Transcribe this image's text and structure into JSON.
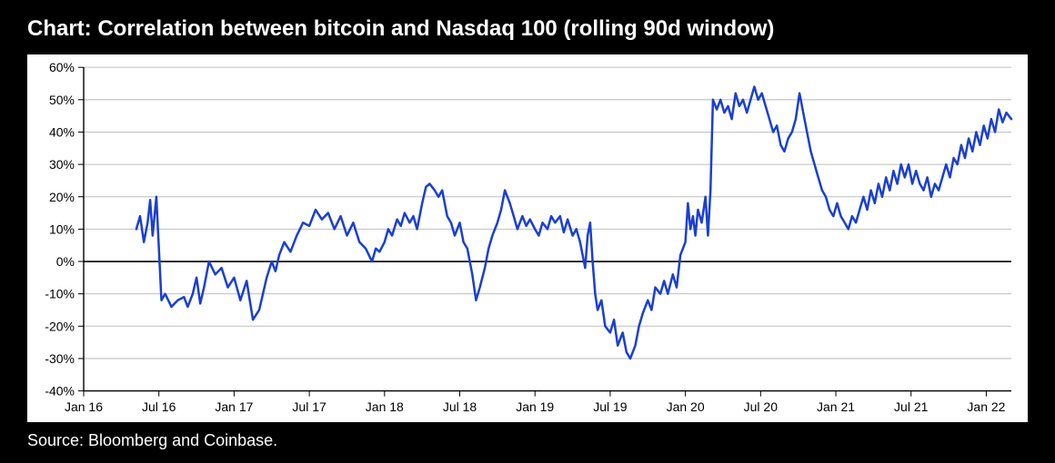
{
  "title": "Chart: Correlation between bitcoin and Nasdaq 100 (rolling 90d window)",
  "source": "Source: Bloomberg and Coinbase.",
  "chart": {
    "type": "line",
    "background_color": "#ffffff",
    "outer_background": "#000000",
    "line_color": "#1b3fd1",
    "line_width": 2.5,
    "axis_color": "#000000",
    "grid_color": "#bfbfbf",
    "zero_line_color": "#000000",
    "tick_color": "#000000",
    "tick_font_size": 14,
    "tick_font_weight": 400,
    "title_font_size": 24,
    "title_font_weight": 700,
    "source_font_size": 18,
    "y_axis": {
      "min": -40,
      "max": 60,
      "tick_step": 10,
      "ticks": [
        -40,
        -30,
        -20,
        -10,
        0,
        10,
        20,
        30,
        40,
        50,
        60
      ],
      "format": "percent"
    },
    "x_axis": {
      "ticks": [
        {
          "t": 0.0,
          "label": "Jan 16"
        },
        {
          "t": 6.0,
          "label": "Jul 16"
        },
        {
          "t": 12.0,
          "label": "Jan 17"
        },
        {
          "t": 18.0,
          "label": "Jul 17"
        },
        {
          "t": 24.0,
          "label": "Jan 18"
        },
        {
          "t": 30.0,
          "label": "Jul 18"
        },
        {
          "t": 36.0,
          "label": "Jan 19"
        },
        {
          "t": 42.0,
          "label": "Jul 19"
        },
        {
          "t": 48.0,
          "label": "Jan 20"
        },
        {
          "t": 54.0,
          "label": "Jul 20"
        },
        {
          "t": 60.0,
          "label": "Jan 21"
        },
        {
          "t": 66.0,
          "label": "Jul 21"
        },
        {
          "t": 72.0,
          "label": "Jan 22"
        }
      ],
      "min": 0,
      "max": 74
    },
    "series": [
      {
        "t": 4.2,
        "v": 10
      },
      {
        "t": 4.5,
        "v": 14
      },
      {
        "t": 4.8,
        "v": 6
      },
      {
        "t": 5.1,
        "v": 12
      },
      {
        "t": 5.3,
        "v": 19
      },
      {
        "t": 5.5,
        "v": 8
      },
      {
        "t": 5.8,
        "v": 20
      },
      {
        "t": 6.0,
        "v": 4
      },
      {
        "t": 6.2,
        "v": -12
      },
      {
        "t": 6.5,
        "v": -10
      },
      {
        "t": 7.0,
        "v": -14
      },
      {
        "t": 7.5,
        "v": -12
      },
      {
        "t": 8.0,
        "v": -11
      },
      {
        "t": 8.3,
        "v": -14
      },
      {
        "t": 8.7,
        "v": -10
      },
      {
        "t": 9.0,
        "v": -5
      },
      {
        "t": 9.3,
        "v": -13
      },
      {
        "t": 9.6,
        "v": -8
      },
      {
        "t": 10.0,
        "v": 0
      },
      {
        "t": 10.5,
        "v": -4
      },
      {
        "t": 11.0,
        "v": -2
      },
      {
        "t": 11.5,
        "v": -8
      },
      {
        "t": 12.0,
        "v": -5
      },
      {
        "t": 12.5,
        "v": -12
      },
      {
        "t": 13.0,
        "v": -6
      },
      {
        "t": 13.5,
        "v": -18
      },
      {
        "t": 14.0,
        "v": -15
      },
      {
        "t": 14.3,
        "v": -10
      },
      {
        "t": 14.6,
        "v": -5
      },
      {
        "t": 15.0,
        "v": 0
      },
      {
        "t": 15.3,
        "v": -3
      },
      {
        "t": 15.6,
        "v": 2
      },
      {
        "t": 16.0,
        "v": 6
      },
      {
        "t": 16.5,
        "v": 3
      },
      {
        "t": 17.0,
        "v": 8
      },
      {
        "t": 17.5,
        "v": 12
      },
      {
        "t": 18.0,
        "v": 11
      },
      {
        "t": 18.5,
        "v": 16
      },
      {
        "t": 19.0,
        "v": 13
      },
      {
        "t": 19.5,
        "v": 15
      },
      {
        "t": 20.0,
        "v": 10
      },
      {
        "t": 20.5,
        "v": 14
      },
      {
        "t": 21.0,
        "v": 8
      },
      {
        "t": 21.5,
        "v": 12
      },
      {
        "t": 22.0,
        "v": 6
      },
      {
        "t": 22.5,
        "v": 4
      },
      {
        "t": 23.0,
        "v": 0
      },
      {
        "t": 23.3,
        "v": 4
      },
      {
        "t": 23.6,
        "v": 3
      },
      {
        "t": 24.0,
        "v": 6
      },
      {
        "t": 24.3,
        "v": 10
      },
      {
        "t": 24.6,
        "v": 8
      },
      {
        "t": 25.0,
        "v": 13
      },
      {
        "t": 25.3,
        "v": 11
      },
      {
        "t": 25.6,
        "v": 15
      },
      {
        "t": 26.0,
        "v": 12
      },
      {
        "t": 26.3,
        "v": 14
      },
      {
        "t": 26.6,
        "v": 10
      },
      {
        "t": 27.0,
        "v": 18
      },
      {
        "t": 27.3,
        "v": 23
      },
      {
        "t": 27.6,
        "v": 24
      },
      {
        "t": 28.0,
        "v": 22
      },
      {
        "t": 28.3,
        "v": 20
      },
      {
        "t": 28.6,
        "v": 22
      },
      {
        "t": 29.0,
        "v": 14
      },
      {
        "t": 29.3,
        "v": 12
      },
      {
        "t": 29.6,
        "v": 8
      },
      {
        "t": 30.0,
        "v": 12
      },
      {
        "t": 30.3,
        "v": 6
      },
      {
        "t": 30.6,
        "v": 4
      },
      {
        "t": 31.0,
        "v": -4
      },
      {
        "t": 31.3,
        "v": -12
      },
      {
        "t": 31.6,
        "v": -8
      },
      {
        "t": 32.0,
        "v": -2
      },
      {
        "t": 32.3,
        "v": 4
      },
      {
        "t": 32.6,
        "v": 8
      },
      {
        "t": 33.0,
        "v": 12
      },
      {
        "t": 33.3,
        "v": 16
      },
      {
        "t": 33.6,
        "v": 22
      },
      {
        "t": 34.0,
        "v": 18
      },
      {
        "t": 34.3,
        "v": 14
      },
      {
        "t": 34.6,
        "v": 10
      },
      {
        "t": 35.0,
        "v": 14
      },
      {
        "t": 35.3,
        "v": 11
      },
      {
        "t": 35.6,
        "v": 13
      },
      {
        "t": 36.0,
        "v": 10
      },
      {
        "t": 36.3,
        "v": 8
      },
      {
        "t": 36.6,
        "v": 12
      },
      {
        "t": 37.0,
        "v": 10
      },
      {
        "t": 37.3,
        "v": 14
      },
      {
        "t": 37.6,
        "v": 12
      },
      {
        "t": 38.0,
        "v": 14
      },
      {
        "t": 38.3,
        "v": 9
      },
      {
        "t": 38.6,
        "v": 13
      },
      {
        "t": 39.0,
        "v": 8
      },
      {
        "t": 39.3,
        "v": 10
      },
      {
        "t": 39.6,
        "v": 6
      },
      {
        "t": 40.0,
        "v": -2
      },
      {
        "t": 40.2,
        "v": 8
      },
      {
        "t": 40.4,
        "v": 12
      },
      {
        "t": 40.6,
        "v": 0
      },
      {
        "t": 40.8,
        "v": -10
      },
      {
        "t": 41.0,
        "v": -15
      },
      {
        "t": 41.3,
        "v": -12
      },
      {
        "t": 41.6,
        "v": -20
      },
      {
        "t": 42.0,
        "v": -22
      },
      {
        "t": 42.3,
        "v": -18
      },
      {
        "t": 42.6,
        "v": -26
      },
      {
        "t": 43.0,
        "v": -22
      },
      {
        "t": 43.3,
        "v": -28
      },
      {
        "t": 43.6,
        "v": -30
      },
      {
        "t": 44.0,
        "v": -26
      },
      {
        "t": 44.3,
        "v": -20
      },
      {
        "t": 44.6,
        "v": -16
      },
      {
        "t": 45.0,
        "v": -12
      },
      {
        "t": 45.3,
        "v": -15
      },
      {
        "t": 45.6,
        "v": -8
      },
      {
        "t": 46.0,
        "v": -10
      },
      {
        "t": 46.3,
        "v": -6
      },
      {
        "t": 46.6,
        "v": -10
      },
      {
        "t": 47.0,
        "v": -4
      },
      {
        "t": 47.3,
        "v": -8
      },
      {
        "t": 47.6,
        "v": 2
      },
      {
        "t": 48.0,
        "v": 6
      },
      {
        "t": 48.2,
        "v": 18
      },
      {
        "t": 48.4,
        "v": 10
      },
      {
        "t": 48.6,
        "v": 14
      },
      {
        "t": 48.8,
        "v": 8
      },
      {
        "t": 49.0,
        "v": 16
      },
      {
        "t": 49.3,
        "v": 12
      },
      {
        "t": 49.6,
        "v": 20
      },
      {
        "t": 49.8,
        "v": 8
      },
      {
        "t": 50.0,
        "v": 22
      },
      {
        "t": 50.2,
        "v": 50
      },
      {
        "t": 50.5,
        "v": 47
      },
      {
        "t": 50.8,
        "v": 50
      },
      {
        "t": 51.1,
        "v": 46
      },
      {
        "t": 51.4,
        "v": 48
      },
      {
        "t": 51.7,
        "v": 44
      },
      {
        "t": 52.0,
        "v": 52
      },
      {
        "t": 52.3,
        "v": 48
      },
      {
        "t": 52.6,
        "v": 50
      },
      {
        "t": 52.9,
        "v": 46
      },
      {
        "t": 53.2,
        "v": 50
      },
      {
        "t": 53.5,
        "v": 54
      },
      {
        "t": 53.8,
        "v": 50
      },
      {
        "t": 54.1,
        "v": 52
      },
      {
        "t": 54.4,
        "v": 48
      },
      {
        "t": 54.7,
        "v": 44
      },
      {
        "t": 55.0,
        "v": 40
      },
      {
        "t": 55.3,
        "v": 42
      },
      {
        "t": 55.6,
        "v": 36
      },
      {
        "t": 55.9,
        "v": 34
      },
      {
        "t": 56.2,
        "v": 38
      },
      {
        "t": 56.5,
        "v": 40
      },
      {
        "t": 56.8,
        "v": 44
      },
      {
        "t": 57.1,
        "v": 52
      },
      {
        "t": 57.4,
        "v": 46
      },
      {
        "t": 57.7,
        "v": 40
      },
      {
        "t": 58.0,
        "v": 34
      },
      {
        "t": 58.3,
        "v": 30
      },
      {
        "t": 58.6,
        "v": 26
      },
      {
        "t": 58.9,
        "v": 22
      },
      {
        "t": 59.2,
        "v": 20
      },
      {
        "t": 59.5,
        "v": 16
      },
      {
        "t": 59.8,
        "v": 14
      },
      {
        "t": 60.1,
        "v": 18
      },
      {
        "t": 60.4,
        "v": 14
      },
      {
        "t": 60.7,
        "v": 12
      },
      {
        "t": 61.0,
        "v": 10
      },
      {
        "t": 61.3,
        "v": 14
      },
      {
        "t": 61.6,
        "v": 12
      },
      {
        "t": 61.9,
        "v": 16
      },
      {
        "t": 62.2,
        "v": 20
      },
      {
        "t": 62.5,
        "v": 16
      },
      {
        "t": 62.8,
        "v": 22
      },
      {
        "t": 63.1,
        "v": 18
      },
      {
        "t": 63.4,
        "v": 24
      },
      {
        "t": 63.7,
        "v": 20
      },
      {
        "t": 64.0,
        "v": 26
      },
      {
        "t": 64.3,
        "v": 22
      },
      {
        "t": 64.6,
        "v": 28
      },
      {
        "t": 64.9,
        "v": 24
      },
      {
        "t": 65.2,
        "v": 30
      },
      {
        "t": 65.5,
        "v": 26
      },
      {
        "t": 65.8,
        "v": 30
      },
      {
        "t": 66.1,
        "v": 24
      },
      {
        "t": 66.4,
        "v": 28
      },
      {
        "t": 66.7,
        "v": 24
      },
      {
        "t": 67.0,
        "v": 22
      },
      {
        "t": 67.3,
        "v": 26
      },
      {
        "t": 67.6,
        "v": 20
      },
      {
        "t": 67.9,
        "v": 24
      },
      {
        "t": 68.2,
        "v": 22
      },
      {
        "t": 68.5,
        "v": 26
      },
      {
        "t": 68.8,
        "v": 30
      },
      {
        "t": 69.1,
        "v": 26
      },
      {
        "t": 69.4,
        "v": 32
      },
      {
        "t": 69.7,
        "v": 30
      },
      {
        "t": 70.0,
        "v": 36
      },
      {
        "t": 70.3,
        "v": 32
      },
      {
        "t": 70.6,
        "v": 38
      },
      {
        "t": 70.9,
        "v": 34
      },
      {
        "t": 71.2,
        "v": 40
      },
      {
        "t": 71.5,
        "v": 36
      },
      {
        "t": 71.8,
        "v": 42
      },
      {
        "t": 72.1,
        "v": 38
      },
      {
        "t": 72.4,
        "v": 44
      },
      {
        "t": 72.7,
        "v": 40
      },
      {
        "t": 73.0,
        "v": 47
      },
      {
        "t": 73.3,
        "v": 43
      },
      {
        "t": 73.6,
        "v": 46
      },
      {
        "t": 74.0,
        "v": 44
      }
    ]
  }
}
